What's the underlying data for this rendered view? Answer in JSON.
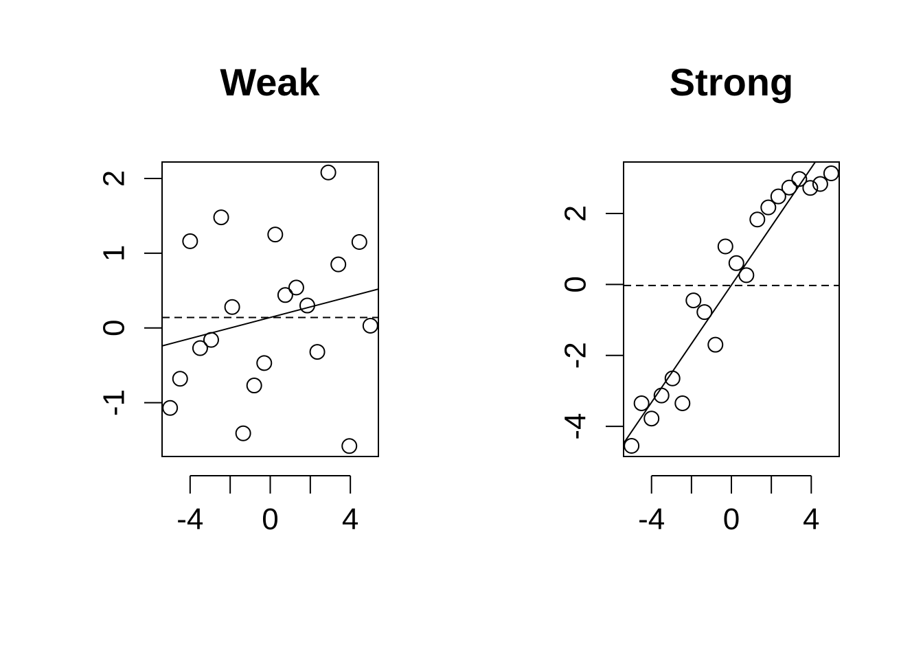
{
  "chart_data": [
    {
      "type": "scatter",
      "title": "Weak",
      "xlabel": "",
      "ylabel": "",
      "xlim": [
        -5.4,
        5.4
      ],
      "ylim": [
        -1.72,
        2.22
      ],
      "xticks": [
        -4,
        -2,
        0,
        2,
        4
      ],
      "xtick_labels": [
        "-4",
        "",
        "0",
        "",
        "4"
      ],
      "yticks": [
        -1,
        0,
        1,
        2
      ],
      "ytick_labels": [
        "-1",
        "0",
        "1",
        "2"
      ],
      "grid": false,
      "x": [
        -5.0,
        -4.5,
        -4.0,
        -3.5,
        -2.95,
        -2.45,
        -1.9,
        -1.35,
        -0.8,
        -0.3,
        0.25,
        0.75,
        1.3,
        1.85,
        2.35,
        2.9,
        3.4,
        3.95,
        4.45,
        5.0
      ],
      "y": [
        -1.07,
        -0.68,
        1.16,
        -0.27,
        -0.16,
        1.48,
        0.28,
        -1.41,
        -0.77,
        -0.47,
        1.25,
        0.44,
        0.54,
        0.3,
        -0.32,
        2.08,
        0.85,
        -1.58,
        1.15,
        0.03
      ],
      "fit_line": {
        "x": [
          -5.4,
          5.4
        ],
        "y": [
          -0.24,
          0.52
        ]
      },
      "mean_line": 0.14
    },
    {
      "type": "scatter",
      "title": "Strong",
      "xlabel": "",
      "ylabel": "",
      "xlim": [
        -5.4,
        5.4
      ],
      "ylim": [
        -4.85,
        3.45
      ],
      "xticks": [
        -4,
        -2,
        0,
        2,
        4
      ],
      "xtick_labels": [
        "-4",
        "",
        "0",
        "",
        "4"
      ],
      "yticks": [
        -4,
        -2,
        0,
        2
      ],
      "ytick_labels": [
        "-4",
        "-2",
        "0",
        "2"
      ],
      "grid": false,
      "x": [
        -5.0,
        -4.5,
        -4.0,
        -3.5,
        -2.95,
        -2.45,
        -1.9,
        -1.35,
        -0.8,
        -0.3,
        0.25,
        0.75,
        1.3,
        1.85,
        2.35,
        2.9,
        3.4,
        3.95,
        4.45,
        5.0
      ],
      "y": [
        -4.55,
        -3.35,
        -3.78,
        -3.13,
        -2.65,
        -3.35,
        -0.45,
        -0.78,
        -1.7,
        1.07,
        0.6,
        0.26,
        1.83,
        2.17,
        2.48,
        2.73,
        2.97,
        2.72,
        2.83,
        3.13
      ],
      "fit_line": {
        "x": [
          -5.4,
          4.2
        ],
        "y": [
          -4.48,
          3.45
        ]
      },
      "mean_line": -0.03
    }
  ]
}
